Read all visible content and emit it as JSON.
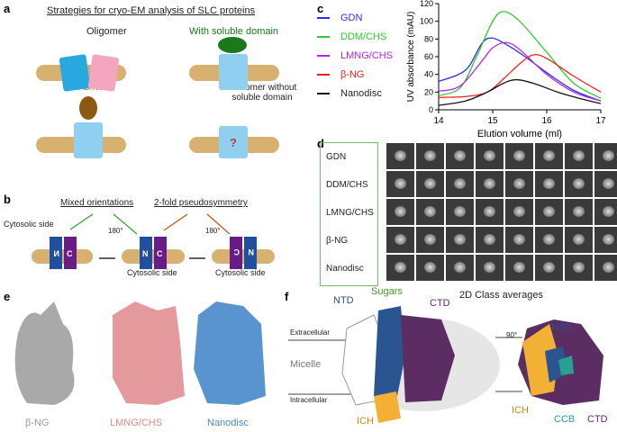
{
  "panels": {
    "a": "a",
    "b": "b",
    "c": "c",
    "d": "d",
    "e": "e",
    "f": "f"
  },
  "a": {
    "title": "Strategies for cryo-EM analysis of SLC proteins",
    "oligomer": "Oligomer",
    "soluble": "With soluble domain",
    "abnb": "Ab/Nb",
    "monomer": "Monomer without soluble domain",
    "q": "?"
  },
  "b": {
    "mixed": "Mixed orientations",
    "pseudo": "2-fold pseudosymmetry",
    "cyto1": "Cytosolic side",
    "cyto2": "Cytosolic side",
    "cyto3": "Cytosolic side",
    "rot1": "180°",
    "rot2": "180°",
    "n": "N",
    "c": "C"
  },
  "chart_data": {
    "type": "line",
    "xlabel": "Elution volume (ml)",
    "ylabel": "UV absorbance (mAU)",
    "xlim": [
      14,
      17
    ],
    "ylim": [
      0,
      120
    ],
    "xticks": [
      14,
      15,
      16,
      17
    ],
    "yticks": [
      0,
      20,
      40,
      60,
      80,
      100,
      120
    ],
    "legend": "left",
    "series": [
      {
        "name": "GDN",
        "color": "#2b2bf0",
        "x": [
          14,
          14.5,
          14.8,
          15,
          15.3,
          15.6,
          16,
          16.5,
          17
        ],
        "y": [
          32,
          45,
          75,
          81,
          72,
          60,
          42,
          22,
          10
        ]
      },
      {
        "name": "DDM/CHS",
        "color": "#2ecc2e",
        "x": [
          14,
          14.4,
          14.7,
          15,
          15.2,
          15.5,
          16,
          16.5,
          17
        ],
        "y": [
          16,
          25,
          60,
          100,
          111,
          100,
          65,
          30,
          13
        ]
      },
      {
        "name": "LMNG/CHS",
        "color": "#b025e8",
        "x": [
          14,
          14.4,
          14.8,
          15,
          15.25,
          15.5,
          16,
          16.5,
          17
        ],
        "y": [
          21,
          27,
          55,
          70,
          76,
          68,
          40,
          20,
          10
        ]
      },
      {
        "name": "β-NG",
        "color": "#f02020",
        "x": [
          14,
          14.5,
          14.9,
          15.2,
          15.5,
          15.75,
          16,
          16.5,
          17
        ],
        "y": [
          14,
          15,
          20,
          35,
          52,
          62,
          58,
          38,
          20
        ]
      },
      {
        "name": "Nanodisc",
        "color": "#111111",
        "x": [
          14,
          14.5,
          14.9,
          15.2,
          15.45,
          15.8,
          16.2,
          16.6,
          17
        ],
        "y": [
          5,
          10,
          20,
          30,
          34,
          29,
          20,
          13,
          7
        ]
      }
    ]
  },
  "d": {
    "rows": [
      "GDN",
      "DDM/CHS",
      "LMNG/CHS",
      "β-NG",
      "Nanodisc"
    ],
    "caption": "2D Class averages"
  },
  "e": {
    "labels": [
      {
        "text": "β-NG",
        "color": "#999999"
      },
      {
        "text": "LMNG/CHS",
        "color": "#e0888a"
      },
      {
        "text": "Nanodisc",
        "color": "#4a86c8"
      }
    ]
  },
  "f": {
    "ntd": "NTD",
    "sugars": "Sugars",
    "ctd": "CTD",
    "extra": "Extracellular",
    "micelle": "Micelle",
    "intra": "Intracellular",
    "ich": "ICH",
    "rot": "90°",
    "ntd2": "NTD",
    "ich2": "ICH",
    "ccb": "CCB",
    "ctd2": "CTD"
  }
}
